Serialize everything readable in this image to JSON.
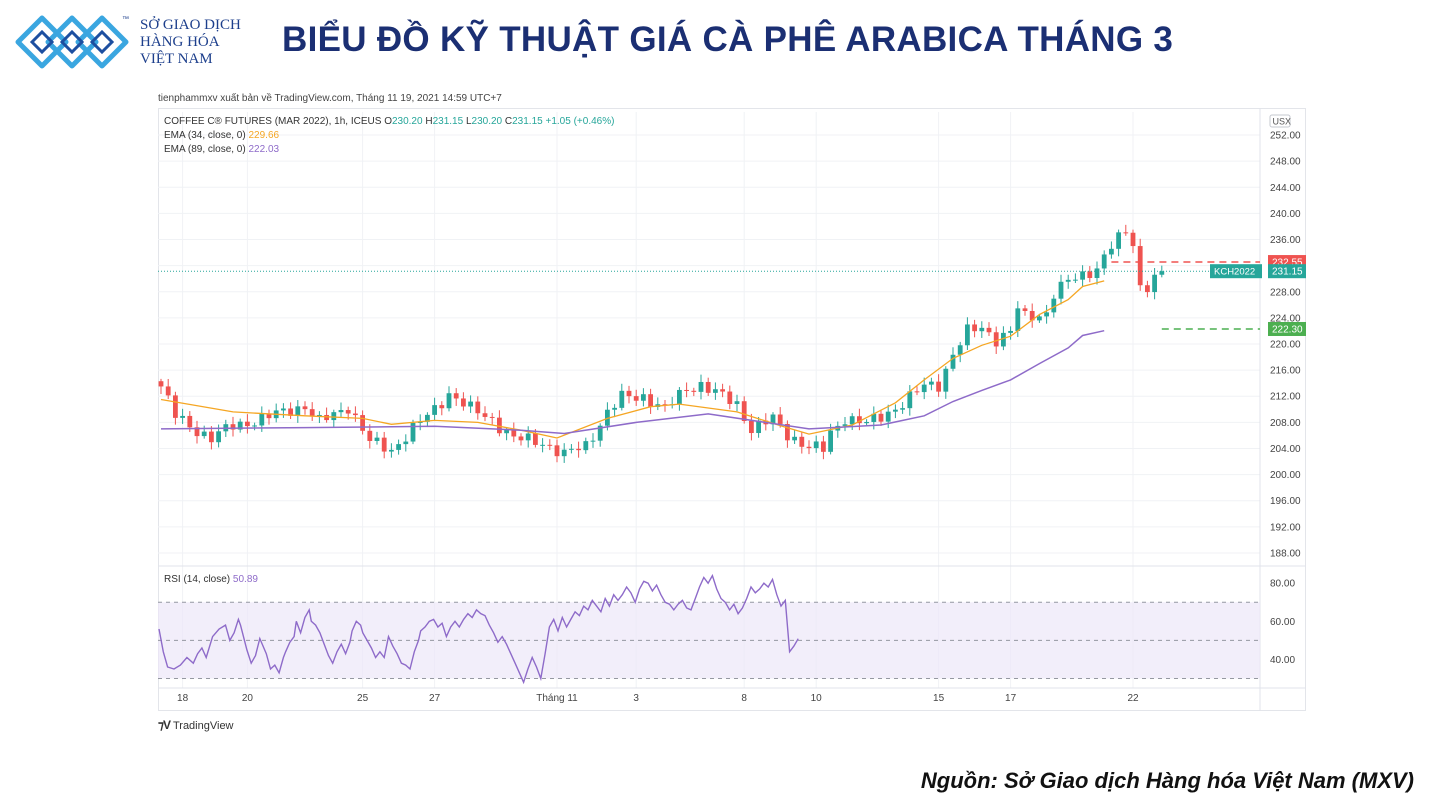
{
  "header": {
    "logo_lines": [
      "SỞ GIAO DỊCH",
      "HÀNG HÓA",
      "VIỆT NAM"
    ],
    "logo_tm": "™",
    "title": "BIỂU ĐỒ KỸ THUẬT GIÁ CÀ PHÊ ARABICA THÁNG 3"
  },
  "publisher": "tienphammxv xuất bản về TradingView.com, Tháng 11 19, 2021 14:59 UTC+7",
  "footer": {
    "tradingview_label": "TradingView",
    "source": "Nguồn: Sở Giao dịch Hàng hóa Việt Nam (MXV)"
  },
  "colors": {
    "up": "#26a69a",
    "down": "#ef5350",
    "ema34": "#f5a623",
    "ema89": "#8e6bc9",
    "rsi": "#8e6bc9",
    "resistance": "#ef5350",
    "support": "#4caf50",
    "last": "#26a69a"
  },
  "chart_data": {
    "type": "candlestick",
    "symbol_line": {
      "name": "COFFEE C® FUTURES (MAR 2022), 1h, ICEUS",
      "O": "230.20",
      "H": "231.15",
      "L": "230.20",
      "C": "231.15",
      "change": "+1.05 (+0.46%)"
    },
    "indicators": [
      {
        "label": "EMA (34, close, 0)",
        "value": "229.66",
        "color": "#f5a623"
      },
      {
        "label": "EMA (89, close, 0)",
        "value": "222.03",
        "color": "#8e6bc9"
      }
    ],
    "currency": "USX",
    "y_axis": {
      "ticks": [
        252,
        248,
        244,
        240,
        236,
        232,
        228,
        224,
        220,
        216,
        212,
        208,
        204,
        200,
        196,
        192,
        188
      ],
      "tick_labels": [
        "252.00",
        "248.00",
        "244.00",
        "240.00",
        "236.00",
        "232.00",
        "228.00",
        "224.00",
        "220.00",
        "216.00",
        "212.00",
        "208.00",
        "204.00",
        "200.00",
        "196.00",
        "192.00",
        "188.00"
      ],
      "range": [
        186,
        254
      ]
    },
    "x_axis": {
      "tick_labels": [
        "18",
        "20",
        "25",
        "27",
        "Tháng 11",
        "3",
        "8",
        "10",
        "15",
        "17",
        "22"
      ],
      "tick_index": [
        3,
        12,
        28,
        38,
        55,
        66,
        81,
        91,
        108,
        118,
        135
      ]
    },
    "ema34": [
      [
        0,
        211.5
      ],
      [
        10,
        209.6
      ],
      [
        20,
        209.0
      ],
      [
        28,
        208.6
      ],
      [
        32,
        207.7
      ],
      [
        38,
        208.3
      ],
      [
        44,
        208.0
      ],
      [
        50,
        206.8
      ],
      [
        55,
        205.6
      ],
      [
        62,
        208.6
      ],
      [
        68,
        210.4
      ],
      [
        72,
        210.8
      ],
      [
        80,
        209.6
      ],
      [
        86,
        207.5
      ],
      [
        90,
        206.2
      ],
      [
        96,
        207.6
      ],
      [
        102,
        211.0
      ],
      [
        106,
        214.5
      ],
      [
        110,
        217.8
      ],
      [
        114,
        219.8
      ],
      [
        118,
        221.2
      ],
      [
        122,
        224.5
      ],
      [
        126,
        226.8
      ],
      [
        128,
        228.8
      ],
      [
        131,
        229.66
      ]
    ],
    "ema89": [
      [
        0,
        207.0
      ],
      [
        20,
        207.2
      ],
      [
        38,
        207.4
      ],
      [
        50,
        206.8
      ],
      [
        56,
        206.3
      ],
      [
        66,
        208.0
      ],
      [
        76,
        209.3
      ],
      [
        90,
        207.0
      ],
      [
        100,
        207.6
      ],
      [
        106,
        209.0
      ],
      [
        110,
        211.2
      ],
      [
        114,
        212.9
      ],
      [
        118,
        214.5
      ],
      [
        122,
        217.0
      ],
      [
        126,
        219.4
      ],
      [
        128,
        221.3
      ],
      [
        131,
        222.03
      ]
    ],
    "close_targets": [
      [
        0,
        213.5
      ],
      [
        2,
        209.0
      ],
      [
        4,
        207.5
      ],
      [
        7,
        205.5
      ],
      [
        10,
        207.5
      ],
      [
        14,
        208.5
      ],
      [
        18,
        210.0
      ],
      [
        20,
        210.5
      ],
      [
        22,
        208.0
      ],
      [
        26,
        210.5
      ],
      [
        29,
        205.0
      ],
      [
        32,
        203.8
      ],
      [
        35,
        207.0
      ],
      [
        38,
        210.0
      ],
      [
        40,
        212.5
      ],
      [
        43,
        210.0
      ],
      [
        46,
        208.5
      ],
      [
        49,
        205.5
      ],
      [
        53,
        205.0
      ],
      [
        56,
        203.0
      ],
      [
        59,
        204.5
      ],
      [
        62,
        209.5
      ],
      [
        64,
        211.8
      ],
      [
        67,
        212.0
      ],
      [
        70,
        210.0
      ],
      [
        73,
        213.2
      ],
      [
        75,
        213.8
      ],
      [
        77,
        212.5
      ],
      [
        80,
        210.8
      ],
      [
        82,
        207.0
      ],
      [
        85,
        208.5
      ],
      [
        87,
        206.2
      ],
      [
        90,
        204.2
      ],
      [
        92,
        203.8
      ],
      [
        93,
        206.3
      ],
      [
        95,
        208.8
      ],
      [
        98,
        207.8
      ],
      [
        100,
        208.8
      ],
      [
        103,
        211.0
      ],
      [
        106,
        213.5
      ],
      [
        108,
        213.8
      ],
      [
        110,
        218.5
      ],
      [
        112,
        221.8
      ],
      [
        114,
        222.5
      ],
      [
        116,
        220.8
      ],
      [
        118,
        221.8
      ],
      [
        119,
        225.5
      ],
      [
        120,
        224.0
      ],
      [
        123,
        224.8
      ],
      [
        124,
        227.8
      ],
      [
        126,
        229.5
      ],
      [
        128,
        230.5
      ],
      [
        130,
        231.8
      ],
      [
        132,
        235.0
      ],
      [
        134,
        237.0
      ],
      [
        135,
        235.5
      ],
      [
        136,
        230.2
      ],
      [
        137,
        229.0
      ],
      [
        138,
        230.4
      ],
      [
        139,
        231.15
      ]
    ],
    "key_levels": [
      {
        "label": "232.55",
        "value": 232.55,
        "color": "#ef5350"
      },
      {
        "label": "222.30",
        "value": 222.3,
        "color": "#4caf50"
      }
    ],
    "last_price": {
      "symbol": "KCH2022",
      "value": "231.15"
    },
    "rsi": {
      "label": "RSI (14, close)",
      "value": "50.89",
      "ticks": [
        "80.00",
        "60.00",
        "40.00"
      ],
      "tick_values": [
        80,
        60,
        40
      ],
      "band": [
        30,
        70
      ],
      "mid": 50,
      "range": [
        25,
        88
      ],
      "points": [
        [
          0,
          56
        ],
        [
          2,
          44
        ],
        [
          4,
          36
        ],
        [
          7,
          35
        ],
        [
          10,
          37
        ],
        [
          13,
          41
        ],
        [
          16,
          38
        ],
        [
          18,
          43
        ],
        [
          20,
          46
        ],
        [
          22,
          41
        ],
        [
          25,
          52
        ],
        [
          28,
          56
        ],
        [
          31,
          58
        ],
        [
          33,
          50
        ],
        [
          35,
          54
        ],
        [
          37,
          61
        ],
        [
          38,
          58
        ],
        [
          41,
          45
        ],
        [
          43,
          38
        ],
        [
          45,
          42
        ],
        [
          47,
          51
        ],
        [
          50,
          43
        ],
        [
          52,
          35
        ],
        [
          54,
          37
        ],
        [
          56,
          33
        ],
        [
          58,
          41
        ],
        [
          59,
          44
        ],
        [
          61,
          49
        ],
        [
          63,
          52
        ],
        [
          64,
          60
        ],
        [
          66,
          54
        ],
        [
          68,
          62
        ],
        [
          70,
          66
        ],
        [
          71,
          60
        ],
        [
          73,
          58
        ],
        [
          75,
          54
        ],
        [
          77,
          48
        ],
        [
          79,
          42
        ],
        [
          81,
          38
        ],
        [
          83,
          44
        ],
        [
          85,
          48
        ],
        [
          87,
          43
        ],
        [
          89,
          49
        ],
        [
          90,
          55
        ],
        [
          92,
          60
        ],
        [
          94,
          58
        ],
        [
          95,
          54
        ],
        [
          97,
          50
        ],
        [
          99,
          46
        ],
        [
          101,
          41
        ],
        [
          103,
          44
        ],
        [
          105,
          41
        ],
        [
          107,
          52
        ],
        [
          109,
          47
        ],
        [
          111,
          43
        ],
        [
          113,
          38
        ],
        [
          115,
          37
        ],
        [
          117,
          35
        ],
        [
          119,
          44
        ],
        [
          121,
          50
        ],
        [
          122,
          55
        ],
        [
          124,
          57
        ],
        [
          126,
          60
        ],
        [
          128,
          61
        ],
        [
          130,
          57
        ],
        [
          132,
          59
        ],
        [
          134,
          52
        ],
        [
          136,
          57
        ],
        [
          138,
          60
        ],
        [
          140,
          57
        ],
        [
          142,
          61
        ],
        [
          144,
          64
        ],
        [
          146,
          62
        ],
        [
          148,
          66
        ],
        [
          150,
          64
        ],
        [
          152,
          63
        ],
        [
          154,
          58
        ],
        [
          156,
          54
        ],
        [
          158,
          49
        ],
        [
          160,
          52
        ],
        [
          162,
          48
        ],
        [
          164,
          43
        ],
        [
          166,
          38
        ],
        [
          168,
          33
        ],
        [
          170,
          28
        ],
        [
          172,
          35
        ],
        [
          174,
          41
        ],
        [
          176,
          36
        ],
        [
          178,
          30
        ],
        [
          180,
          43
        ],
        [
          182,
          57
        ],
        [
          184,
          61
        ],
        [
          186,
          55
        ],
        [
          188,
          62
        ],
        [
          190,
          57
        ],
        [
          192,
          61
        ],
        [
          194,
          65
        ],
        [
          196,
          63
        ],
        [
          198,
          68
        ],
        [
          200,
          66
        ],
        [
          202,
          71
        ],
        [
          204,
          68
        ],
        [
          206,
          65
        ],
        [
          208,
          72
        ],
        [
          210,
          68
        ],
        [
          212,
          74
        ],
        [
          214,
          71
        ],
        [
          216,
          74
        ],
        [
          218,
          78
        ],
        [
          220,
          75
        ],
        [
          222,
          70
        ],
        [
          224,
          77
        ],
        [
          226,
          81
        ],
        [
          228,
          80
        ],
        [
          230,
          76
        ],
        [
          232,
          79
        ],
        [
          234,
          74
        ],
        [
          236,
          70
        ],
        [
          238,
          69
        ],
        [
          240,
          66
        ],
        [
          242,
          69
        ],
        [
          244,
          71
        ],
        [
          246,
          67
        ],
        [
          248,
          66
        ],
        [
          250,
          72
        ],
        [
          252,
          78
        ],
        [
          254,
          83
        ],
        [
          256,
          80
        ],
        [
          258,
          84
        ],
        [
          260,
          77
        ],
        [
          262,
          72
        ],
        [
          264,
          70
        ],
        [
          266,
          66
        ],
        [
          268,
          69
        ],
        [
          270,
          64
        ],
        [
          272,
          67
        ],
        [
          274,
          72
        ],
        [
          276,
          78
        ],
        [
          278,
          75
        ],
        [
          280,
          77
        ],
        [
          282,
          80
        ],
        [
          284,
          78
        ],
        [
          286,
          82
        ],
        [
          288,
          74
        ],
        [
          290,
          68
        ],
        [
          292,
          71
        ],
        [
          294,
          44
        ],
        [
          296,
          47
        ],
        [
          298,
          50.89
        ]
      ]
    },
    "rsi_x_scale": 2.145
  }
}
